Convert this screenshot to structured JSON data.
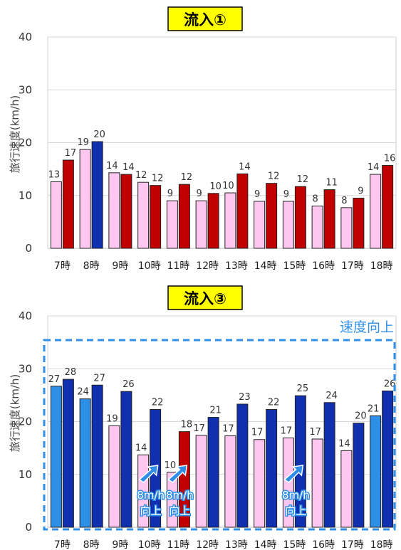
{
  "colors": {
    "before": "#ffc6f0",
    "bar_border": "#222222",
    "after_red": "#c00000",
    "after_blue": "#1030b0",
    "before_blue": "#2e8fe6",
    "title_bg": "#ffff00",
    "highlight": "#2f8fe8",
    "grid": "#d9d9d9"
  },
  "chart_data": [
    {
      "type": "bar",
      "title": "流入①",
      "ylabel": "旅行速度(km/h)",
      "ylim": [
        0,
        40
      ],
      "yticks": [
        0,
        10,
        20,
        30,
        40
      ],
      "grid": true,
      "categories": [
        "7時",
        "8時",
        "9時",
        "10時",
        "11時",
        "12時",
        "13時",
        "14時",
        "15時",
        "16時",
        "17時",
        "18時"
      ],
      "series": [
        {
          "values": [
            12.6,
            18.7,
            14.3,
            12.5,
            9.0,
            9.0,
            10.5,
            8.9,
            8.9,
            8.0,
            7.7,
            14.0
          ],
          "labels": [
            "13",
            "19",
            "14",
            "12",
            "9",
            "9",
            "10",
            "9",
            "9",
            "8",
            "8",
            "14"
          ],
          "fill": [
            "#ffc6f0",
            "#ffc6f0",
            "#ffc6f0",
            "#ffc6f0",
            "#ffc6f0",
            "#ffc6f0",
            "#ffc6f0",
            "#ffc6f0",
            "#ffc6f0",
            "#ffc6f0",
            "#ffc6f0",
            "#ffc6f0"
          ]
        },
        {
          "values": [
            16.7,
            20.2,
            14.0,
            11.9,
            12.1,
            10.4,
            14.1,
            12.3,
            11.7,
            11.1,
            9.5,
            15.7
          ],
          "labels": [
            "17",
            "20",
            "14",
            "12",
            "12",
            "10",
            "14",
            "12",
            "12",
            "11",
            "9",
            "16"
          ],
          "fill": [
            "#c00000",
            "#1030b0",
            "#c00000",
            "#c00000",
            "#c00000",
            "#c00000",
            "#c00000",
            "#c00000",
            "#c00000",
            "#c00000",
            "#c00000",
            "#c00000"
          ]
        }
      ]
    },
    {
      "type": "bar",
      "title": "流入③",
      "ylabel": "旅行速度(km/h)",
      "ylim": [
        0,
        40
      ],
      "yticks": [
        0,
        10,
        20,
        30,
        40
      ],
      "grid": true,
      "categories": [
        "7時",
        "8時",
        "9時",
        "10時",
        "11時",
        "12時",
        "13時",
        "14時",
        "15時",
        "16時",
        "17時",
        "18時"
      ],
      "series": [
        {
          "values": [
            26.7,
            24.3,
            19.2,
            13.7,
            10.4,
            17.4,
            17.3,
            16.6,
            16.9,
            16.7,
            14.5,
            21.1
          ],
          "labels": [
            "27",
            "24",
            "19",
            "14",
            "10",
            "17",
            "17",
            "17",
            "17",
            "17",
            "14",
            "21"
          ],
          "fill": [
            "#2e8fe6",
            "#2e8fe6",
            "#ffc6f0",
            "#ffc6f0",
            "#ffc6f0",
            "#ffc6f0",
            "#ffc6f0",
            "#ffc6f0",
            "#ffc6f0",
            "#ffc6f0",
            "#ffc6f0",
            "#2e8fe6"
          ]
        },
        {
          "values": [
            28.0,
            26.9,
            25.7,
            22.3,
            18.1,
            20.8,
            23.3,
            22.3,
            24.9,
            23.6,
            19.7,
            25.8
          ],
          "labels": [
            "28",
            "27",
            "26",
            "22",
            "18",
            "21",
            "23",
            "22",
            "25",
            "24",
            "20",
            "26"
          ],
          "fill": [
            "#1030b0",
            "#1030b0",
            "#1030b0",
            "#1030b0",
            "#c00000",
            "#1030b0",
            "#1030b0",
            "#1030b0",
            "#1030b0",
            "#1030b0",
            "#1030b0",
            "#1030b0"
          ]
        }
      ],
      "annotations": {
        "highlight_label": "速度向上",
        "callouts": [
          {
            "category_index": 3,
            "line1": "8m/h",
            "line2": "向上"
          },
          {
            "category_index": 4,
            "line1": "8m/h",
            "line2": "向上"
          },
          {
            "category_index": 8,
            "line1": "8m/h",
            "line2": "向上"
          }
        ]
      }
    }
  ]
}
